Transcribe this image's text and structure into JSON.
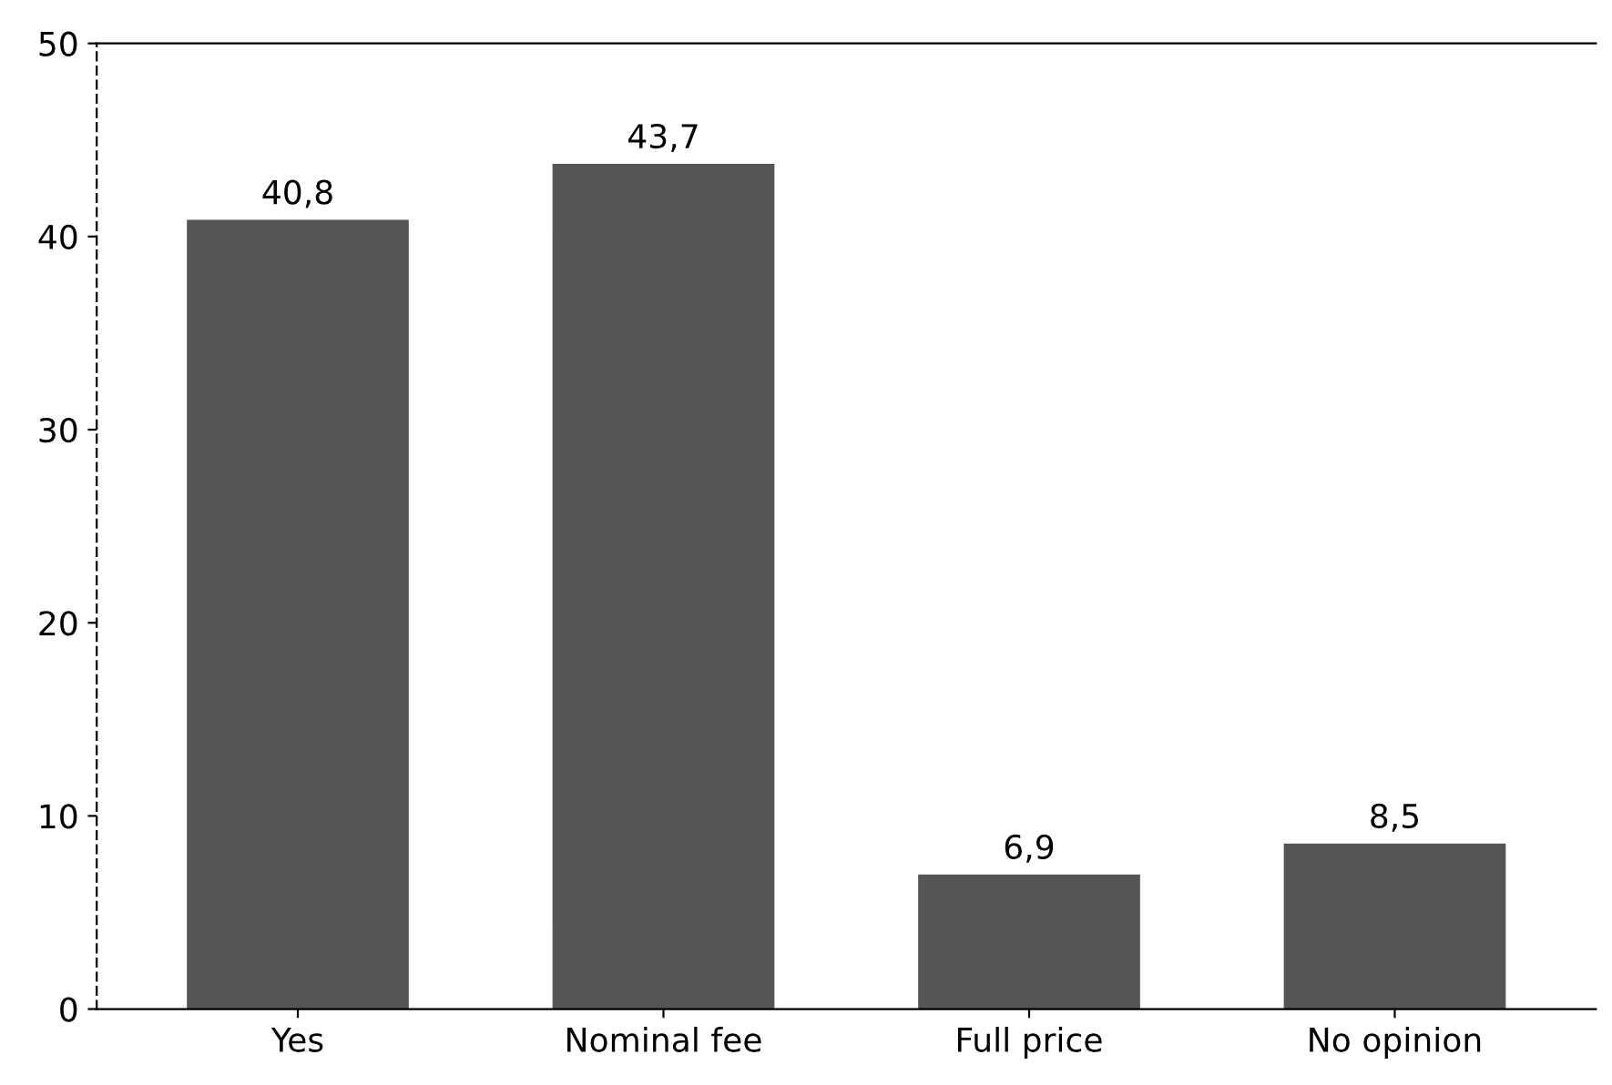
{
  "chart_data": {
    "type": "bar",
    "categories": [
      "Yes",
      "Nominal fee",
      "Full price",
      "No opinion"
    ],
    "values": [
      40.8,
      43.7,
      6.9,
      8.5
    ],
    "color": "#555555",
    "value_labels": [
      "40,8",
      "43,7",
      "6,9",
      "8,5"
    ],
    "ylim": [
      0,
      50
    ],
    "yticks": [
      0,
      10,
      20,
      30,
      40,
      50
    ],
    "grid": false
  }
}
